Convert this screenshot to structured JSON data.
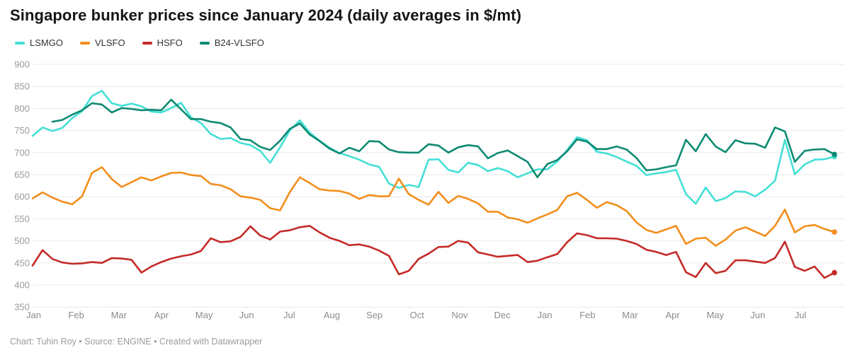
{
  "title": "Singapore bunker prices since January 2024 (daily averages in $/mt)",
  "footer": "Chart: Tuhin Roy • Source: ENGINE • Created with Datawrapper",
  "colors": {
    "background": "#ffffff",
    "gridline": "#e8e8e8",
    "axis_text": "#9a9a9a",
    "month_text": "#8c8c8c",
    "title_text": "#151515",
    "legend_text": "#333333"
  },
  "chart_data": {
    "type": "line",
    "title": "Singapore bunker prices since January 2024 (daily averages in $/mt)",
    "unit": "$/mt",
    "ylim": [
      350,
      900
    ],
    "grid": true,
    "legend_position": "top-left",
    "y_ticks": [
      900,
      850,
      800,
      750,
      700,
      650,
      600,
      550,
      500,
      450,
      400,
      350
    ],
    "x_labels": [
      "Jan",
      "Feb",
      "Mar",
      "Apr",
      "May",
      "Jun",
      "Jul",
      "Aug",
      "Sep",
      "Oct",
      "Nov",
      "Dec",
      "Jan",
      "Feb",
      "Mar",
      "Apr",
      "May",
      "Jun",
      "Jul"
    ],
    "x_range_note": "Jan 2024 - late Jul 2025, values sampled ~weekly",
    "series": [
      {
        "name": "LSMGO",
        "color": "#44dfd6",
        "start_index": 0,
        "values": [
          738,
          757,
          749,
          756,
          778,
          794,
          828,
          840,
          812,
          806,
          811,
          805,
          793,
          791,
          801,
          813,
          780,
          767,
          742,
          731,
          733,
          722,
          717,
          704,
          677,
          712,
          751,
          773,
          745,
          727,
          711,
          699,
          692,
          684,
          673,
          668,
          630,
          620,
          627,
          622,
          684,
          685,
          661,
          655,
          677,
          672,
          658,
          665,
          658,
          644,
          653,
          662,
          662,
          680,
          706,
          735,
          728,
          702,
          698,
          690,
          680,
          670,
          649,
          653,
          656,
          661,
          606,
          584,
          621,
          590,
          597,
          612,
          611,
          601,
          616,
          636,
          729,
          651,
          673,
          684,
          685,
          691
        ]
      },
      {
        "name": "VLSFO",
        "color": "#f28e1c",
        "start_index": 0,
        "values": [
          596,
          610,
          598,
          589,
          583,
          601,
          654,
          667,
          640,
          622,
          633,
          644,
          637,
          646,
          654,
          655,
          649,
          647,
          629,
          626,
          617,
          601,
          598,
          593,
          574,
          569,
          611,
          644,
          631,
          617,
          614,
          613,
          607,
          595,
          604,
          601,
          601,
          641,
          606,
          593,
          582,
          611,
          586,
          602,
          595,
          585,
          566,
          566,
          553,
          549,
          541,
          551,
          560,
          570,
          601,
          609,
          593,
          575,
          588,
          581,
          568,
          542,
          525,
          518,
          526,
          534,
          493,
          505,
          507,
          489,
          503,
          523,
          531,
          521,
          511,
          534,
          571,
          519,
          533,
          536,
          527,
          520
        ]
      },
      {
        "name": "HSFO",
        "color": "#c42b28",
        "start_index": 0,
        "values": [
          444,
          479,
          459,
          451,
          448,
          449,
          452,
          450,
          461,
          460,
          457,
          428,
          442,
          452,
          460,
          465,
          469,
          477,
          506,
          497,
          499,
          509,
          533,
          512,
          503,
          521,
          524,
          531,
          534,
          519,
          507,
          500,
          490,
          492,
          487,
          478,
          466,
          424,
          432,
          459,
          471,
          486,
          487,
          500,
          496,
          474,
          469,
          464,
          466,
          468,
          452,
          455,
          463,
          470,
          497,
          517,
          513,
          506,
          506,
          505,
          500,
          493,
          480,
          475,
          468,
          475,
          429,
          418,
          450,
          427,
          432,
          456,
          456,
          453,
          450,
          461,
          498,
          441,
          432,
          442,
          416,
          428
        ]
      },
      {
        "name": "B24-VLSFO",
        "color": "#0e8a72",
        "start_index": 2,
        "values": [
          770,
          774,
          786,
          796,
          812,
          809,
          791,
          801,
          799,
          796,
          797,
          796,
          820,
          798,
          776,
          776,
          770,
          767,
          757,
          731,
          728,
          713,
          706,
          727,
          754,
          766,
          741,
          726,
          709,
          698,
          711,
          703,
          726,
          725,
          707,
          701,
          700,
          700,
          719,
          716,
          700,
          712,
          717,
          714,
          687,
          699,
          705,
          692,
          679,
          644,
          674,
          683,
          703,
          730,
          725,
          708,
          708,
          714,
          707,
          688,
          660,
          662,
          667,
          671,
          729,
          703,
          742,
          714,
          701,
          728,
          721,
          720,
          711,
          757,
          748,
          679,
          704,
          707,
          708,
          696
        ]
      }
    ]
  }
}
